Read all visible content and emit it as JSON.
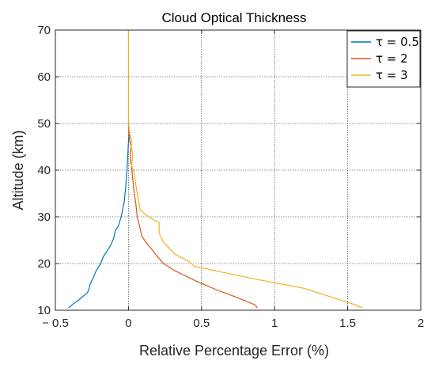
{
  "chart_data": {
    "type": "line",
    "title": "Cloud Optical Thickness",
    "xlabel": "Relative Percentage Error (%)",
    "ylabel": "Altitude (km)",
    "xlim": [
      -0.5,
      2
    ],
    "ylim": [
      10,
      70
    ],
    "xticks": [
      "− 0.5",
      "0",
      "0.5",
      "1",
      "1.5",
      "2"
    ],
    "xtick_values": [
      -0.5,
      0,
      0.5,
      1,
      1.5,
      2
    ],
    "yticks": [
      "10",
      "20",
      "30",
      "40",
      "50",
      "60",
      "70"
    ],
    "ytick_values": [
      10,
      20,
      30,
      40,
      50,
      60,
      70
    ],
    "grid": true,
    "legend_position": "top-right",
    "series": [
      {
        "name": "τ = 0.5",
        "color": "#0072BD",
        "points": [
          [
            -0.41,
            10.5
          ],
          [
            -0.38,
            11.3
          ],
          [
            -0.34,
            12.2
          ],
          [
            -0.31,
            13
          ],
          [
            -0.28,
            13.8
          ],
          [
            -0.27,
            14.6
          ],
          [
            -0.26,
            15.8
          ],
          [
            -0.24,
            17
          ],
          [
            -0.22,
            18.5
          ],
          [
            -0.19,
            20
          ],
          [
            -0.17,
            21.6
          ],
          [
            -0.15,
            22.5
          ],
          [
            -0.12,
            24
          ],
          [
            -0.1,
            25.5
          ],
          [
            -0.09,
            27
          ],
          [
            -0.07,
            28
          ],
          [
            -0.05,
            30
          ],
          [
            -0.03,
            33
          ],
          [
            -0.02,
            36
          ],
          [
            -0.01,
            40
          ],
          [
            -0.005,
            43
          ],
          [
            0,
            46
          ],
          [
            0.005,
            48
          ],
          [
            0.005,
            49
          ],
          [
            0,
            50
          ]
        ]
      },
      {
        "name": "τ = 2",
        "color": "#D95319",
        "points": [
          [
            0.88,
            10.5
          ],
          [
            0.87,
            11.1
          ],
          [
            0.8,
            12
          ],
          [
            0.72,
            13
          ],
          [
            0.6,
            14.4
          ],
          [
            0.48,
            16
          ],
          [
            0.4,
            17.2
          ],
          [
            0.31,
            18.6
          ],
          [
            0.24,
            20
          ],
          [
            0.2,
            21.4
          ],
          [
            0.16,
            23
          ],
          [
            0.12,
            24.5
          ],
          [
            0.09,
            26
          ],
          [
            0.08,
            27.5
          ],
          [
            0.06,
            30
          ],
          [
            0.05,
            33
          ],
          [
            0.04,
            35
          ],
          [
            0.03,
            38
          ],
          [
            0.02,
            41
          ],
          [
            0.01,
            43.5
          ],
          [
            0.02,
            45
          ],
          [
            0.01,
            46
          ],
          [
            0.005,
            48
          ],
          [
            0,
            50
          ]
        ]
      },
      {
        "name": "τ = 3",
        "color": "#EDB120",
        "points": [
          [
            1.6,
            10.5
          ],
          [
            1.55,
            11.2
          ],
          [
            1.2,
            14.7
          ],
          [
            0.83,
            16.9
          ],
          [
            0.45,
            19.4
          ],
          [
            0.42,
            20.3
          ],
          [
            0.32,
            22
          ],
          [
            0.24,
            24.5
          ],
          [
            0.21,
            26.5
          ],
          [
            0.21,
            28.8
          ],
          [
            0.18,
            29.2
          ],
          [
            0.12,
            30.4
          ],
          [
            0.08,
            31.5
          ],
          [
            0.07,
            33.3
          ],
          [
            0.06,
            35
          ],
          [
            0.05,
            37
          ],
          [
            0.04,
            39.3
          ],
          [
            0.02,
            41
          ],
          [
            0.03,
            43
          ],
          [
            0.02,
            45
          ],
          [
            0.02,
            46.4
          ],
          [
            0.01,
            47.8
          ],
          [
            0.005,
            49
          ],
          [
            0,
            50
          ],
          [
            0,
            60
          ],
          [
            0,
            70
          ]
        ]
      }
    ]
  }
}
